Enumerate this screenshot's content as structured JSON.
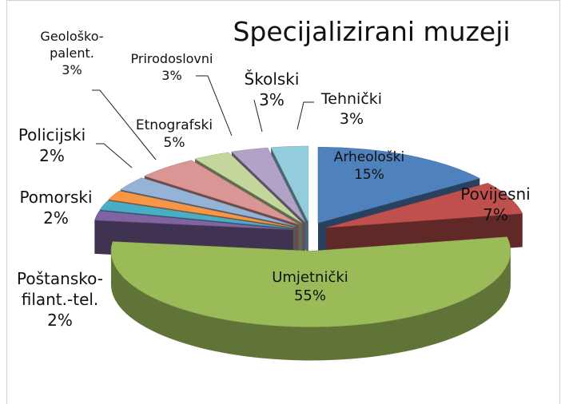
{
  "chart_data": {
    "type": "pie3d",
    "title": "Specijalizirani muzeji",
    "categories": [
      "Arheološki",
      "Povijesni",
      "Umjetnički",
      "Poštansko-filant.-tel.",
      "Pomorski",
      "Policijski",
      "Geološko-palent.",
      "Etnografski",
      "Prirodoslovni",
      "Školski",
      "Tehnički"
    ],
    "values": [
      15,
      7,
      55,
      2,
      2,
      2,
      3,
      5,
      3,
      3,
      3
    ],
    "value_labels": [
      "15%",
      "7%",
      "55%",
      "2%",
      "2%",
      "2%",
      "3%",
      "5%",
      "3%",
      "3%",
      "3%"
    ],
    "colors": [
      "#4f81bd",
      "#c0504d",
      "#9bbb59",
      "#8064a2",
      "#4bacc6",
      "#f79646",
      "#95b3d7",
      "#d99694",
      "#c3d69b",
      "#b3a2c7",
      "#93cddd"
    ]
  }
}
